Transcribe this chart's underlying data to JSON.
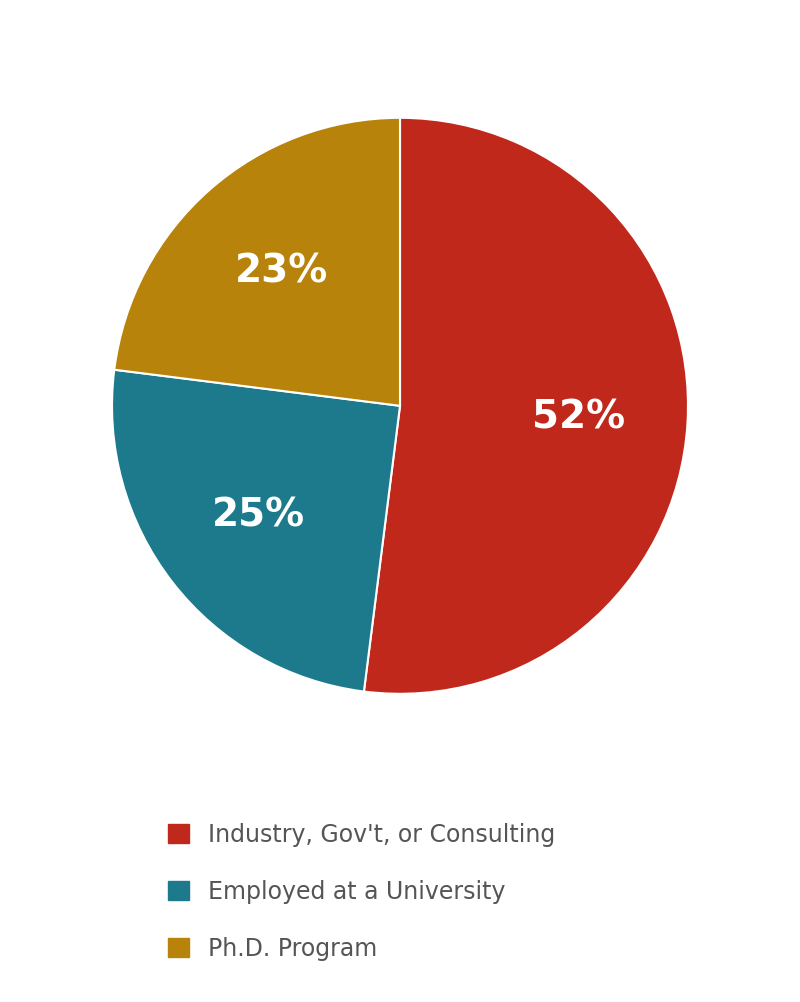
{
  "slices": [
    52,
    25,
    23
  ],
  "labels": [
    "Industry, Gov't, or Consulting",
    "Employed at a University",
    "Ph.D. Program"
  ],
  "colors": [
    "#C0281C",
    "#1D7A8C",
    "#B8830A"
  ],
  "pct_labels": [
    "52%",
    "25%",
    "23%"
  ],
  "startangle": 90,
  "counterclock": false,
  "text_color": "#ffffff",
  "legend_text_color": "#555555",
  "background_color": "#ffffff",
  "pct_fontsize": 28,
  "legend_fontsize": 17,
  "figsize": [
    8.0,
    10.02
  ],
  "dpi": 100
}
